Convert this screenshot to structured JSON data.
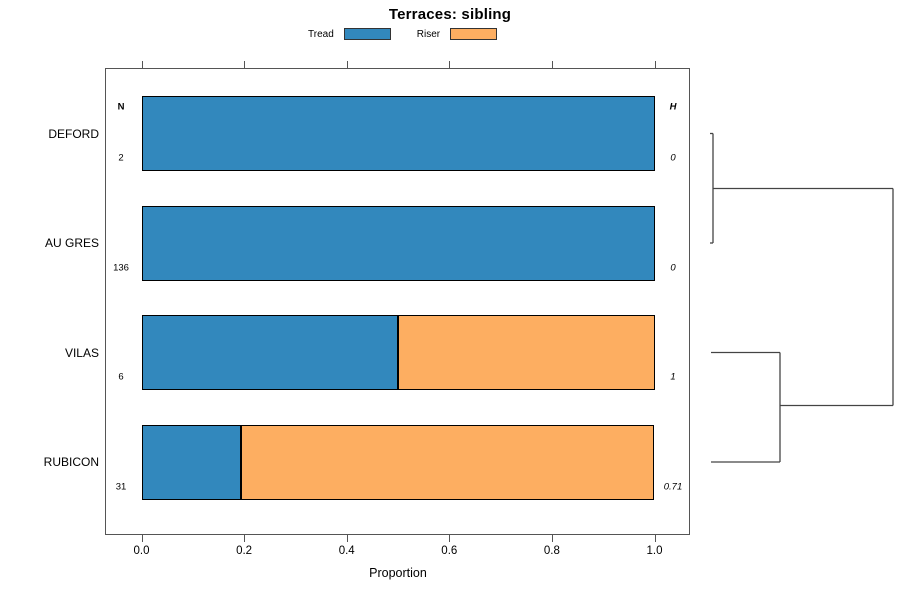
{
  "title": "Terraces: sibling",
  "xlabel": "Proportion",
  "chart_data": {
    "type": "bar",
    "stacked": true,
    "orientation": "horizontal",
    "title": "Terraces: sibling",
    "xlabel": "Proportion",
    "xlim": [
      0,
      1
    ],
    "grid": false,
    "legend_position": "top-center",
    "x_tick_labels": [
      "0.0",
      "0.2",
      "0.4",
      "0.6",
      "0.8",
      "1.0"
    ],
    "categories": [
      "DEFORD",
      "AU GRES",
      "VILAS",
      "RUBICON"
    ],
    "series": [
      {
        "name": "Tread",
        "color": "#3288BD",
        "values": [
          1.0,
          1.0,
          0.5,
          0.194
        ]
      },
      {
        "name": "Riser",
        "color": "#FDAE61",
        "values": [
          0.0,
          0.0,
          0.5,
          0.806
        ]
      }
    ],
    "columns": {
      "n": {
        "header": "N",
        "values": [
          "2",
          "136",
          "6",
          "31"
        ]
      },
      "h": {
        "header": "H",
        "values": [
          "0",
          "0",
          "1",
          "0.71"
        ]
      }
    },
    "dendrogram": {
      "description": "cluster tree, leaves at left next to plot box, root at right",
      "line_color": "#444444",
      "segments": [
        [
          710,
          133.5,
          713,
          133.5
        ],
        [
          710,
          243,
          713,
          243
        ],
        [
          713,
          133.5,
          713,
          243
        ],
        [
          713,
          188.5,
          893,
          188.5
        ],
        [
          893,
          188.5,
          893,
          405.5
        ],
        [
          711,
          352.5,
          780,
          352.5
        ],
        [
          711,
          462,
          780,
          462
        ],
        [
          780,
          352.5,
          780,
          462
        ],
        [
          780,
          405.5,
          893,
          405.5
        ]
      ]
    }
  }
}
